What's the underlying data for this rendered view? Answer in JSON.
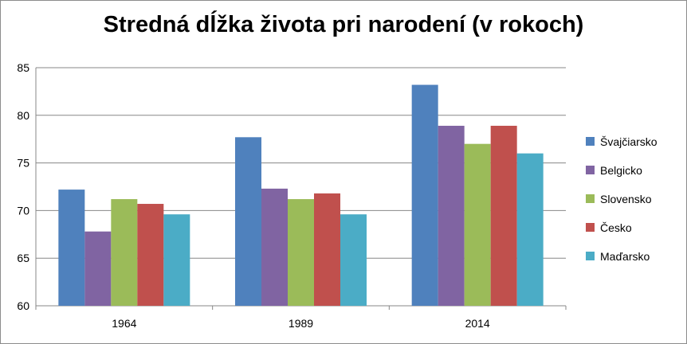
{
  "chart_data": {
    "type": "bar",
    "title": "Stredná dĺžka života pri narodení (v rokoch)",
    "xlabel": "",
    "ylabel": "",
    "categories": [
      "1964",
      "1989",
      "2014"
    ],
    "ylim": [
      60,
      85
    ],
    "yticks": [
      "60",
      "65",
      "70",
      "75",
      "80",
      "85"
    ],
    "grid": true,
    "legend_position": "right",
    "series": [
      {
        "name": "Švajčiarsko",
        "color": "#4f81bd",
        "values": [
          72.2,
          77.7,
          83.2
        ]
      },
      {
        "name": "Belgicko",
        "color": "#8064a2",
        "values": [
          67.8,
          72.3,
          78.9
        ]
      },
      {
        "name": "Slovensko",
        "color": "#9bbb59",
        "values": [
          71.2,
          71.2,
          77.0
        ]
      },
      {
        "name": "Česko",
        "color": "#c0504d",
        "values": [
          70.7,
          71.8,
          78.9
        ]
      },
      {
        "name": "Maďarsko",
        "color": "#4bacc6",
        "values": [
          69.6,
          69.6,
          76.0
        ]
      }
    ]
  }
}
